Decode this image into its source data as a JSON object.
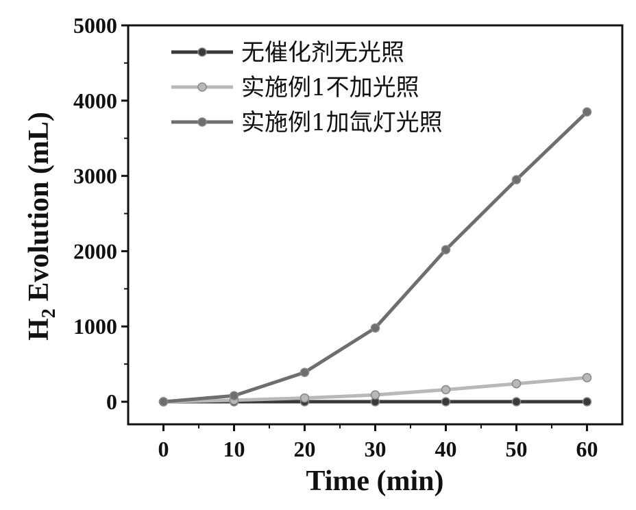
{
  "chart_data": {
    "type": "line",
    "xlabel": "Time (min)",
    "ylabel_main": "H",
    "ylabel_sub": "2",
    "ylabel_rest": " Evolution (mL)",
    "xlim": [
      -5,
      65
    ],
    "ylim": [
      -300,
      5000
    ],
    "xticks": [
      0,
      10,
      20,
      30,
      40,
      50,
      60
    ],
    "yticks": [
      0,
      1000,
      2000,
      3000,
      4000,
      5000
    ],
    "grid": false,
    "legend_position": "top-left",
    "x": [
      0,
      10,
      20,
      30,
      40,
      50,
      60
    ],
    "series": [
      {
        "name": "无催化剂无光照",
        "color": "#3a3a3a",
        "values": [
          0,
          0,
          0,
          0,
          0,
          0,
          0
        ]
      },
      {
        "name": "实施例1不加光照",
        "color": "#b8b8b8",
        "values": [
          0,
          20,
          50,
          90,
          160,
          240,
          320
        ]
      },
      {
        "name": "实施例1加氙灯光照",
        "color": "#6e6e6e",
        "values": [
          0,
          80,
          390,
          980,
          2020,
          2950,
          3850
        ]
      }
    ]
  }
}
